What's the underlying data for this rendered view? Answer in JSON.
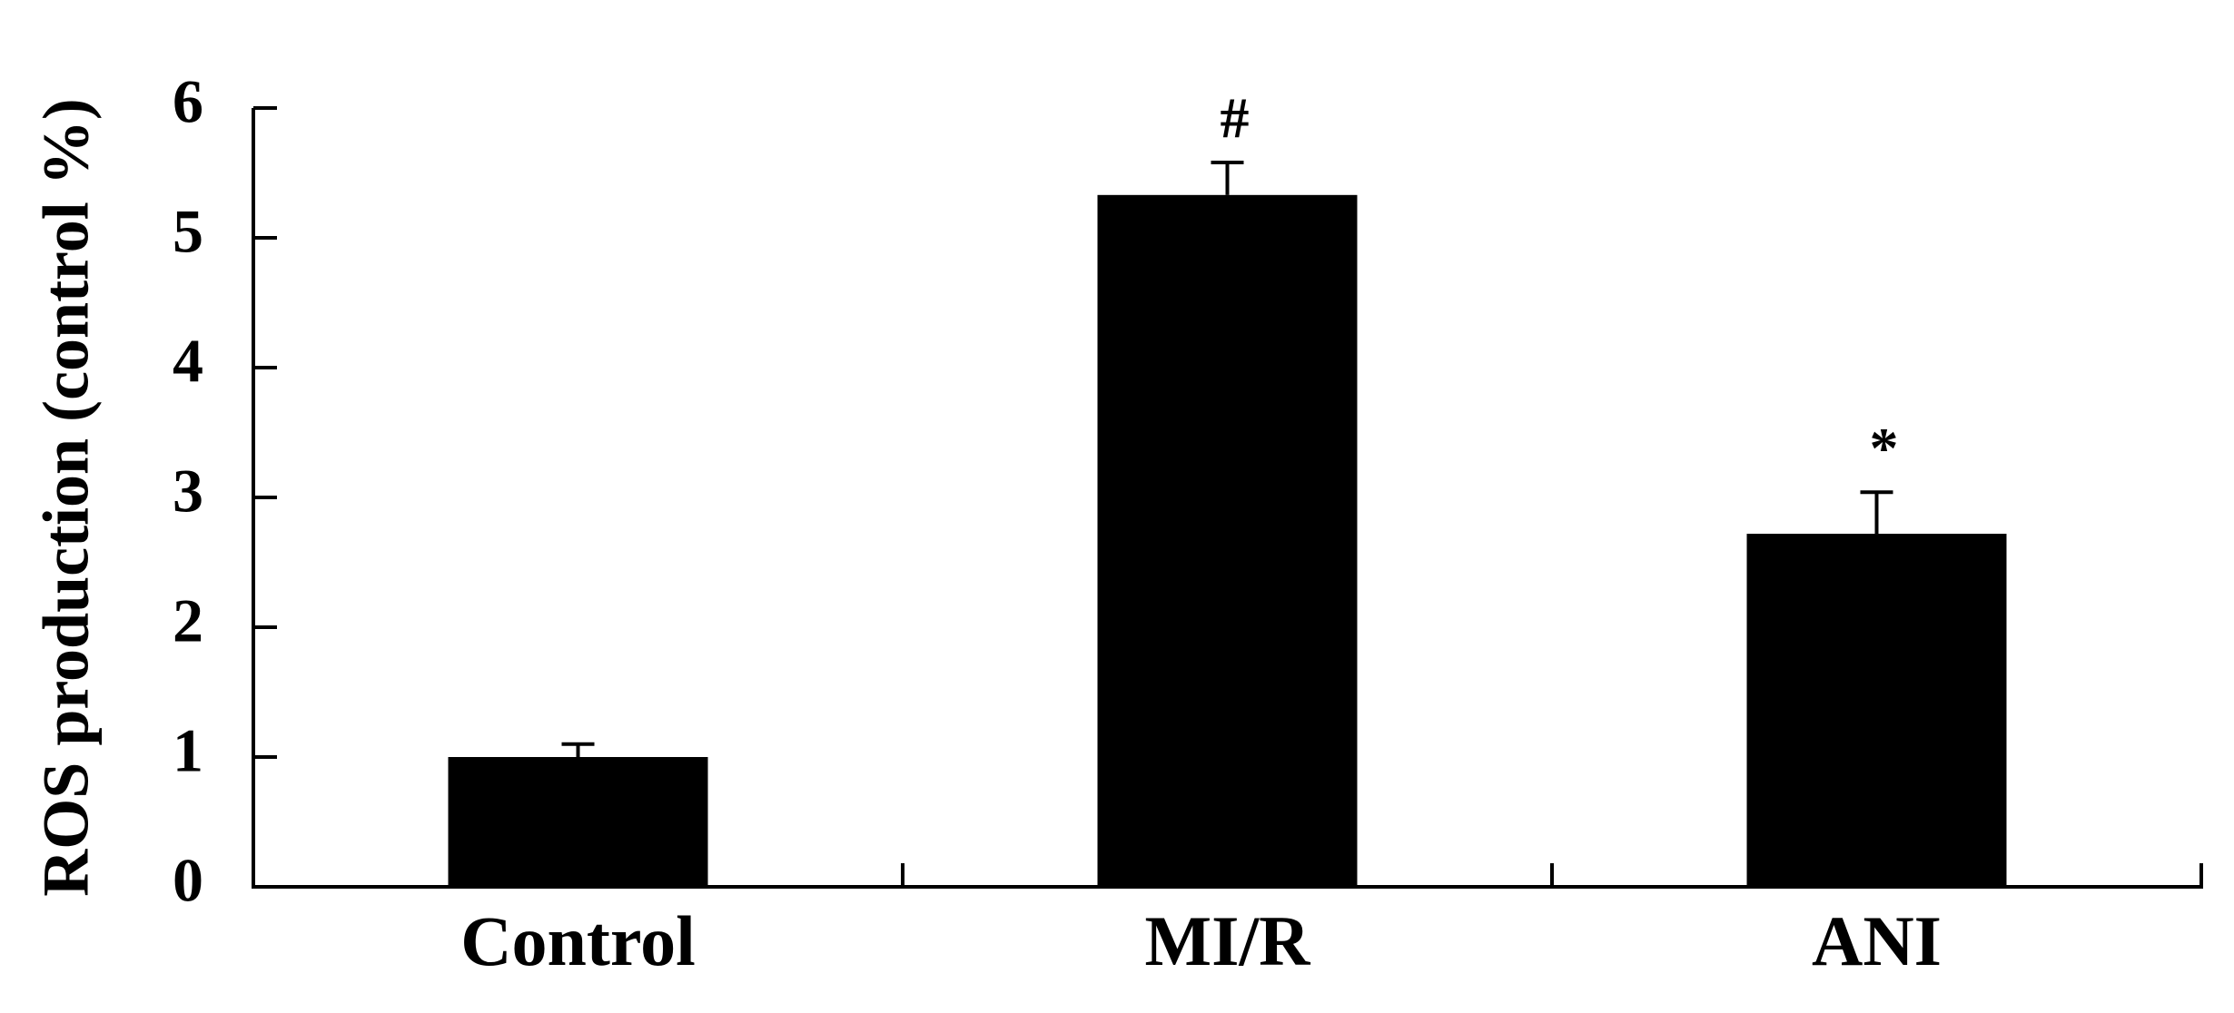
{
  "chart_data": {
    "type": "bar",
    "y_label": "ROS production (control %)",
    "categories": [
      "Control",
      "MI/R",
      "ANI"
    ],
    "values": [
      1.0,
      5.33,
      2.72
    ],
    "errors": [
      0.1,
      0.25,
      0.32
    ],
    "annotations": [
      null,
      "#",
      "*"
    ],
    "color": "#000000",
    "ylim": [
      0,
      6
    ],
    "yticks": [
      0,
      1,
      2,
      3,
      4,
      5,
      6
    ],
    "grid": false
  }
}
